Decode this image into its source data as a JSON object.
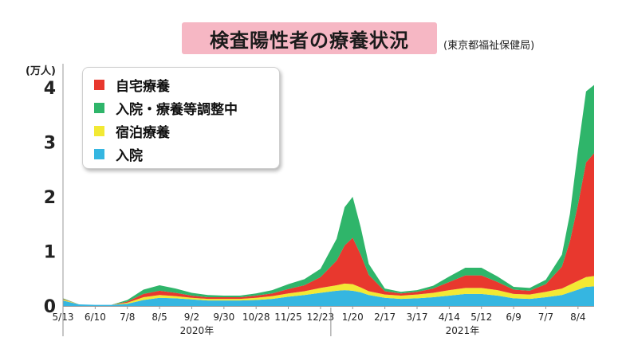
{
  "title": "検査陽性者の療養状況",
  "source": "(東京都福祉保健局)",
  "unit": "(万人)",
  "colors": {
    "home": "#e8382e",
    "adjusting": "#2fb56a",
    "hotel": "#f2e934",
    "hospital": "#35b6e1",
    "axis": "#999999"
  },
  "legend": [
    {
      "label": "自宅療養",
      "color": "#e8382e"
    },
    {
      "label": "入院・療養等調整中",
      "color": "#2fb56a"
    },
    {
      "label": "宿泊療養",
      "color": "#f2e934"
    },
    {
      "label": "入院",
      "color": "#35b6e1"
    }
  ],
  "chart_data": {
    "type": "area",
    "stacked": true,
    "title": "検査陽性者の療養状況",
    "ylabel": "(万人)",
    "ylim": [
      0,
      4.3
    ],
    "yticks": [
      0,
      1,
      2,
      3,
      4
    ],
    "x_ticks": [
      "5/13",
      "6/10",
      "7/8",
      "8/5",
      "9/2",
      "9/30",
      "10/28",
      "11/25",
      "12/23",
      "1/20",
      "2/17",
      "3/17",
      "4/14",
      "5/12",
      "6/9",
      "7/7",
      "8/4"
    ],
    "year_labels": [
      "2020年",
      "2021年"
    ],
    "legend_position": "top-left",
    "x": [
      "2020-05-13",
      "2020-05-27",
      "2020-06-10",
      "2020-06-24",
      "2020-07-08",
      "2020-07-22",
      "2020-08-05",
      "2020-08-19",
      "2020-09-02",
      "2020-09-16",
      "2020-09-30",
      "2020-10-14",
      "2020-10-28",
      "2020-11-11",
      "2020-11-25",
      "2020-12-09",
      "2020-12-23",
      "2021-01-06",
      "2021-01-13",
      "2021-01-20",
      "2021-01-27",
      "2021-02-03",
      "2021-02-17",
      "2021-03-03",
      "2021-03-17",
      "2021-03-31",
      "2021-04-14",
      "2021-04-28",
      "2021-05-12",
      "2021-05-26",
      "2021-06-09",
      "2021-06-23",
      "2021-07-07",
      "2021-07-21",
      "2021-07-28",
      "2021-08-04",
      "2021-08-11",
      "2021-08-18"
    ],
    "series": [
      {
        "name": "入院",
        "color": "#35b6e1",
        "values": [
          0.1,
          0.03,
          0.02,
          0.02,
          0.04,
          0.11,
          0.15,
          0.14,
          0.12,
          0.1,
          0.1,
          0.1,
          0.11,
          0.13,
          0.17,
          0.2,
          0.24,
          0.28,
          0.29,
          0.28,
          0.25,
          0.2,
          0.15,
          0.13,
          0.14,
          0.16,
          0.19,
          0.22,
          0.22,
          0.19,
          0.14,
          0.13,
          0.16,
          0.2,
          0.25,
          0.3,
          0.35,
          0.36
        ]
      },
      {
        "name": "宿泊療養",
        "color": "#f2e934",
        "values": [
          0.02,
          0.0,
          0.0,
          0.0,
          0.02,
          0.05,
          0.05,
          0.04,
          0.03,
          0.03,
          0.03,
          0.03,
          0.04,
          0.05,
          0.06,
          0.07,
          0.09,
          0.1,
          0.12,
          0.12,
          0.09,
          0.07,
          0.06,
          0.06,
          0.07,
          0.08,
          0.1,
          0.11,
          0.11,
          0.1,
          0.08,
          0.08,
          0.1,
          0.12,
          0.14,
          0.16,
          0.18,
          0.19
        ]
      },
      {
        "name": "自宅療養",
        "color": "#e8382e",
        "values": [
          0.01,
          0.0,
          0.0,
          0.0,
          0.02,
          0.06,
          0.08,
          0.06,
          0.04,
          0.03,
          0.03,
          0.03,
          0.04,
          0.05,
          0.08,
          0.11,
          0.2,
          0.45,
          0.7,
          0.85,
          0.6,
          0.3,
          0.06,
          0.04,
          0.05,
          0.08,
          0.15,
          0.23,
          0.23,
          0.15,
          0.08,
          0.07,
          0.14,
          0.4,
          0.8,
          1.4,
          2.1,
          2.25
        ]
      },
      {
        "name": "入院・療養等調整中",
        "color": "#2fb56a",
        "values": [
          0.01,
          0.0,
          0.0,
          0.0,
          0.03,
          0.08,
          0.1,
          0.08,
          0.05,
          0.04,
          0.03,
          0.03,
          0.04,
          0.06,
          0.09,
          0.11,
          0.15,
          0.4,
          0.7,
          0.75,
          0.5,
          0.2,
          0.05,
          0.03,
          0.03,
          0.05,
          0.1,
          0.14,
          0.14,
          0.1,
          0.05,
          0.05,
          0.08,
          0.22,
          0.5,
          1.0,
          1.3,
          1.25
        ]
      }
    ]
  }
}
